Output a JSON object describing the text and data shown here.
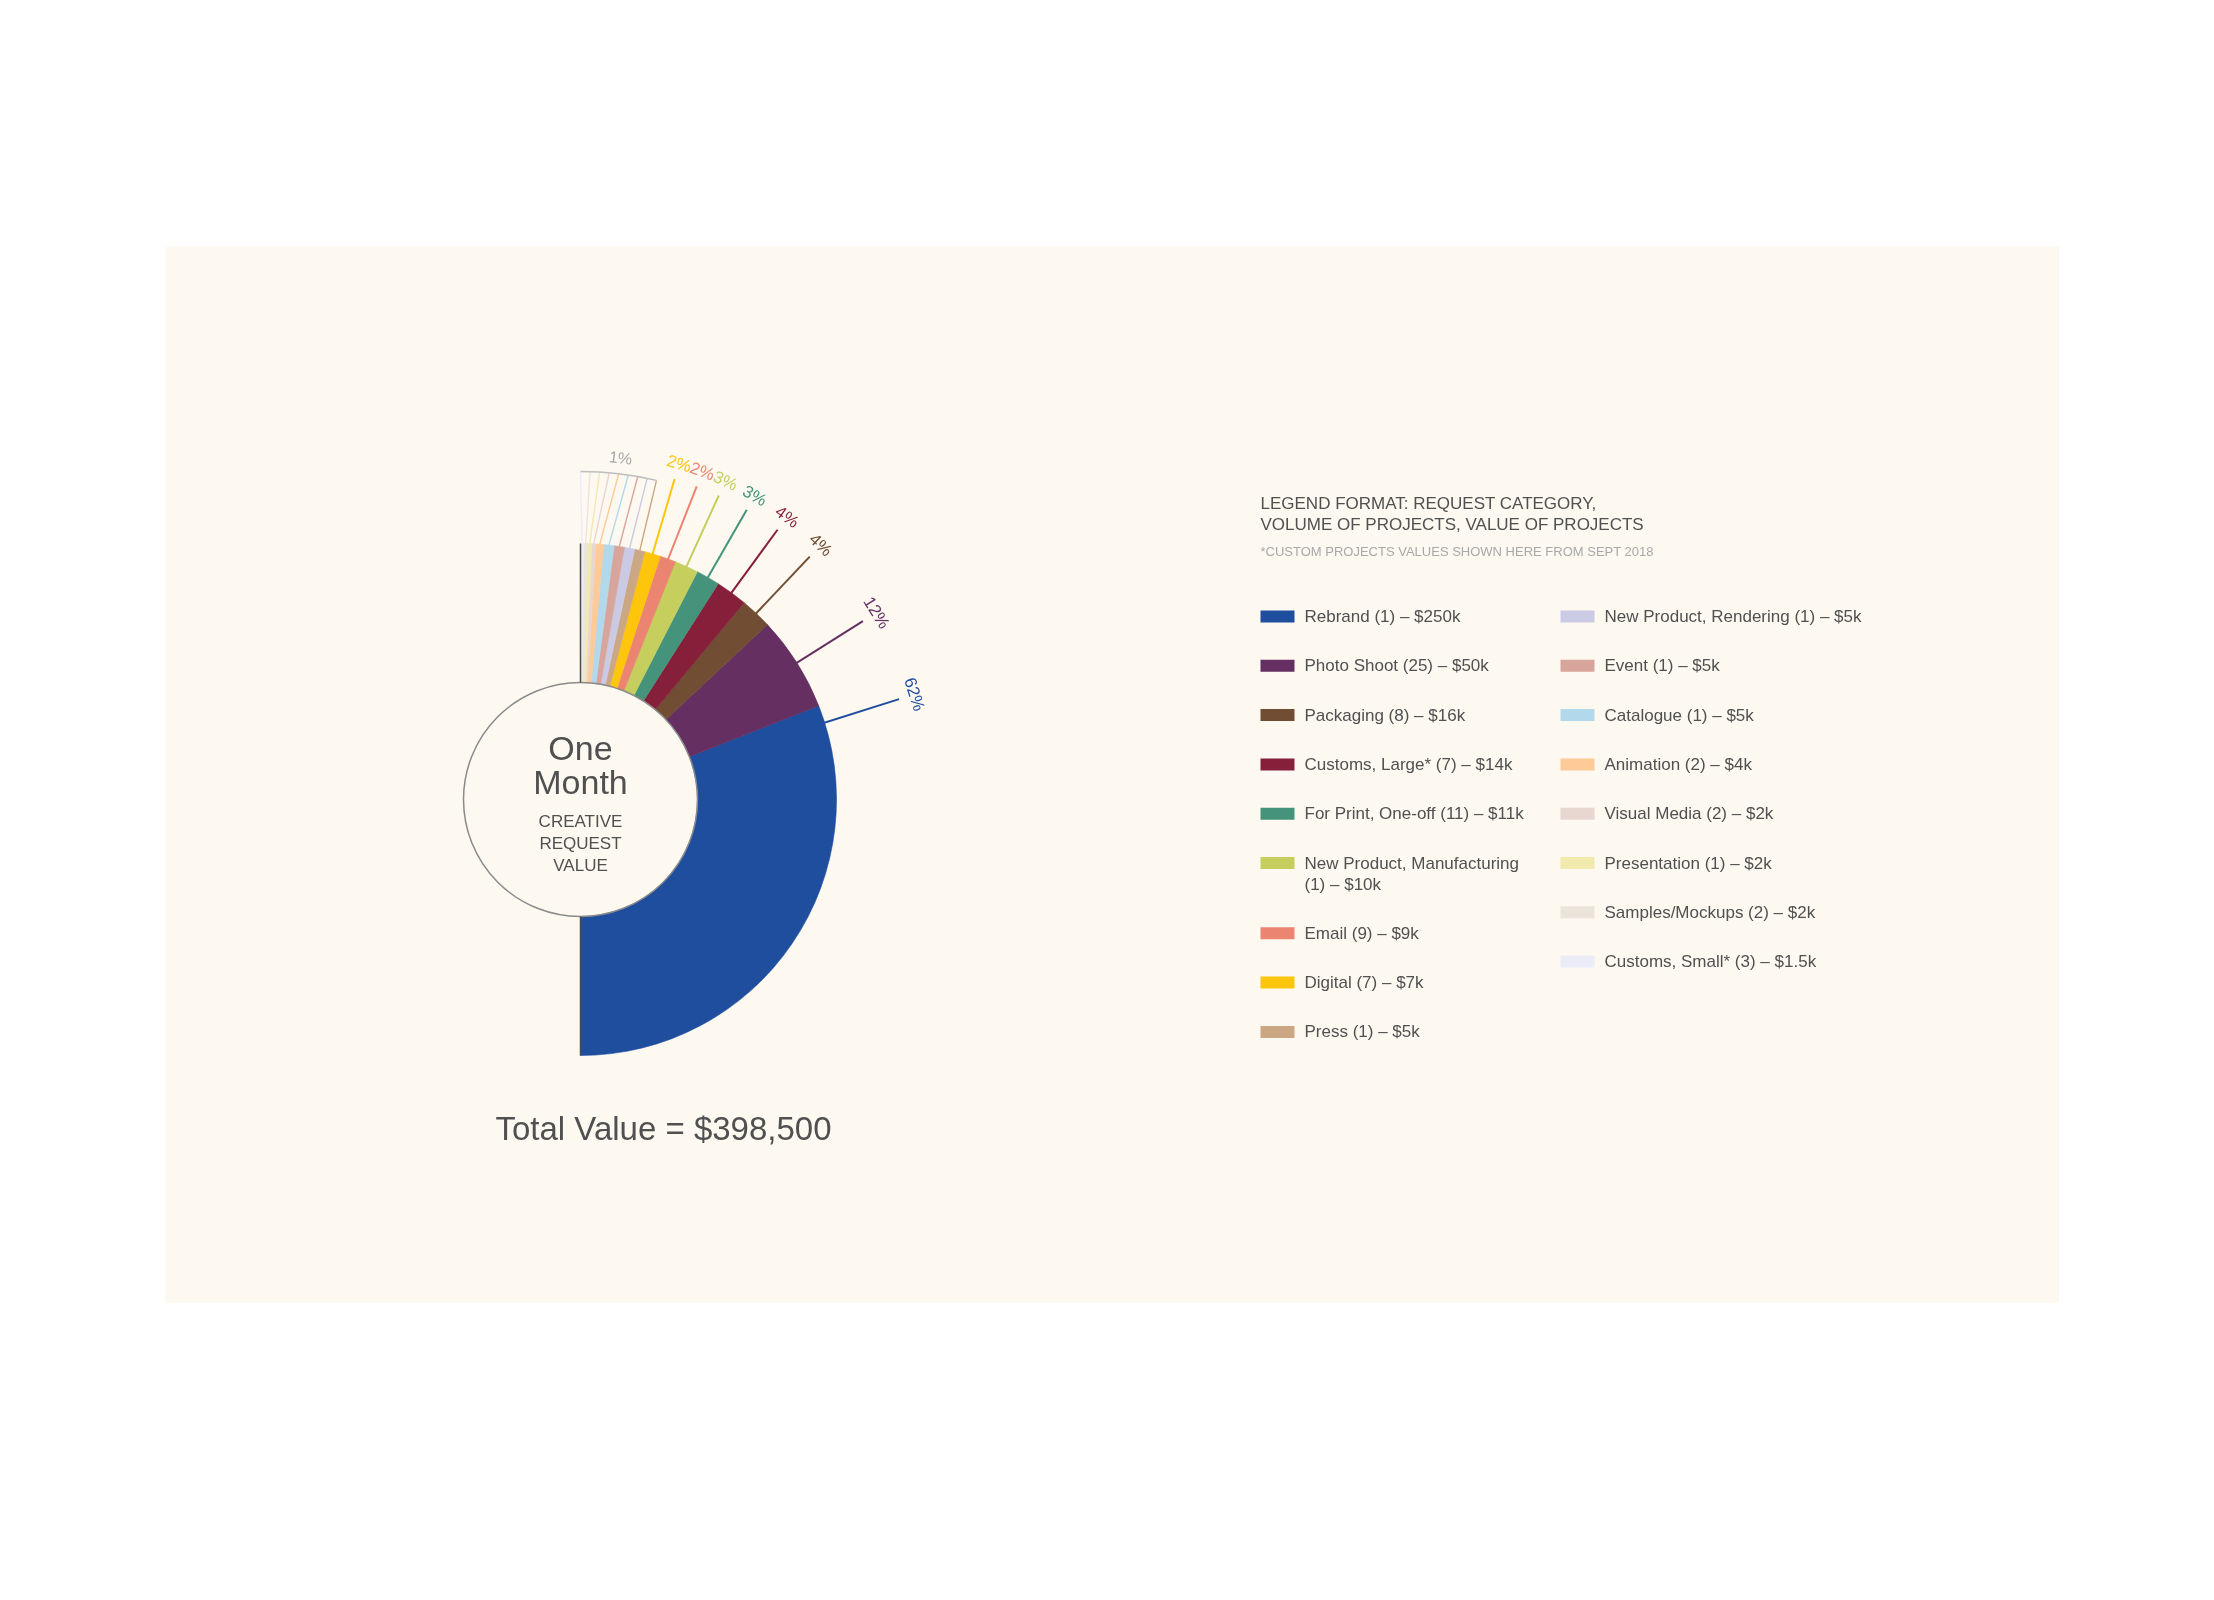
{
  "chart_data": {
    "type": "donut",
    "title": "One Month",
    "subtitle": "CREATIVE REQUEST VALUE",
    "legend_title": "LEGEND FORMAT: REQUEST CATEGORY, VOLUME OF PROJECTS, VALUE OF PROJECTS",
    "categories": [
      "Rebrand (1) – $250k",
      "Photo Shoot (25) – $50k",
      "Packaging (8) – $16k",
      "Customs, Large* (7) – $14k",
      "For Print, One-off (11) – $11k",
      "New Product, Manufacturing (1) – $10k",
      "Email (9) – $9k",
      "Digital (7) – $7k",
      "Press (1) – $5k",
      "New Product, Rendering (1) – $5k",
      "Event (1) – $5k",
      "Catalogue (1) – $5k",
      "Animation (2) – $4k",
      "Visual Media (2) – $2k",
      "Presentation (1) – $2k",
      "Samples/Mockups (2) – $2k",
      "Customs, Small* (3) – $1.5k"
    ],
    "values": [
      62,
      12,
      4,
      4,
      3,
      3,
      2,
      2,
      1.3,
      1.3,
      1.3,
      1.3,
      1,
      0.5,
      0.5,
      0.5,
      0.4
    ],
    "colors": [
      "#1f4e9f",
      "#652f62",
      "#714d34",
      "#86203a",
      "#45937a",
      "#c6ce5e",
      "#eb8571",
      "#fec50d",
      "#cba883",
      "#cbcae4",
      "#d8a59c",
      "#b2d8ec",
      "#fdca98",
      "#e8d6d0",
      "#f2e9ae",
      "#ebe4d8",
      "#ecebf8"
    ],
    "value_labels": [
      "62%",
      "12%",
      "4%",
      "4%",
      "3%",
      "3%",
      "2%",
      "2%",
      null,
      null,
      null,
      null,
      null,
      null,
      null,
      null,
      null
    ],
    "legend": "right",
    "annotations": [
      "1%",
      "Total Value = $398,500",
      "*CUSTOM PROJECTS VALUES SHOWN HERE FROM SEPT 2018"
    ]
  }
}
